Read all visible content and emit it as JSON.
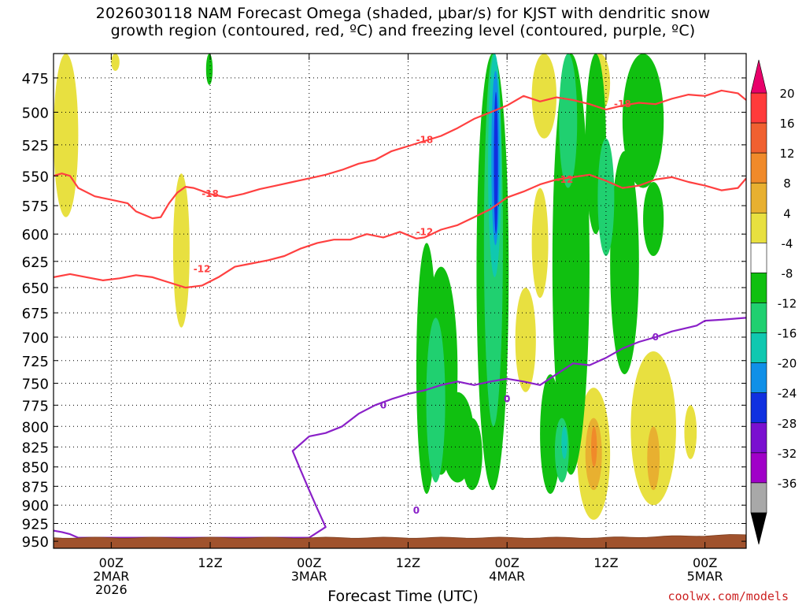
{
  "title": {
    "line1": "2026030118 NAM Forecast Omega (shaded, μbar/s) for KJST with dendritic snow",
    "line2": "growth region (contoured, red, ºC) and freezing level (contoured, purple, ºC)"
  },
  "xlabel": "Forecast Time (UTC)",
  "credit": "coolwx.com/models",
  "chart_data": {
    "type": "heatmap",
    "title": "2026030118 NAM Forecast Omega (shaded, μbar/s) for KJST with dendritic snow growth region (contoured, red, ºC) and freezing level (contoured, purple, ºC)",
    "xlabel": "Forecast Time (UTC)",
    "ylabel": "",
    "xlim_hours": [
      -7,
      77
    ],
    "ylim": [
      960,
      458
    ],
    "grid": true,
    "y_ticks": [
      "475",
      "500",
      "525",
      "550",
      "575",
      "600",
      "625",
      "650",
      "675",
      "700",
      "725",
      "750",
      "775",
      "800",
      "825",
      "850",
      "875",
      "900",
      "925",
      "950"
    ],
    "x_ticks": [
      {
        "h": 0,
        "lines": [
          "00Z",
          "2MAR",
          "2026"
        ]
      },
      {
        "h": 12,
        "lines": [
          "12Z"
        ]
      },
      {
        "h": 24,
        "lines": [
          "00Z",
          "3MAR"
        ]
      },
      {
        "h": 36,
        "lines": [
          "12Z"
        ]
      },
      {
        "h": 48,
        "lines": [
          "00Z",
          "4MAR"
        ]
      },
      {
        "h": 60,
        "lines": [
          "12Z"
        ]
      },
      {
        "h": 72,
        "lines": [
          "00Z",
          "5MAR"
        ]
      }
    ],
    "colorbar": {
      "labels": [
        "20",
        "16",
        "12",
        "8",
        "4",
        "-4",
        "-8",
        "-12",
        "-16",
        "-20",
        "-24",
        "-28",
        "-32",
        "-36"
      ],
      "colors": [
        "#e8f05a",
        "#f06070",
        "#e8f05a",
        "#f08a2a",
        "#e8b030",
        "#e8e040",
        "#ffffff",
        "#10c010",
        "#20d070",
        "#10c8b0",
        "#1090e8",
        "#1030e0",
        "#7a10d0",
        "#a000c8",
        "#a8a8a8",
        "#000000"
      ],
      "top_triangle": "#e8006a",
      "bottom_triangle": "#000000"
    },
    "shading_colors": {
      "pos4": "#e8e040",
      "pos8": "#e8b030",
      "pos12": "#f08a2a",
      "pos16": "#f06030",
      "neg4": "#10c010",
      "neg8": "#20d070",
      "neg12": "#10c8b0",
      "neg16": "#1090e8",
      "neg20": "#1030e0"
    },
    "series": [
      {
        "name": "-18",
        "color": "#ff4040",
        "points": [
          [
            -7,
            550
          ],
          [
            -6,
            548
          ],
          [
            -5,
            550
          ],
          [
            -4,
            560
          ],
          [
            -2,
            567
          ],
          [
            0,
            570
          ],
          [
            2,
            573
          ],
          [
            3,
            580
          ],
          [
            5,
            586
          ],
          [
            6,
            585
          ],
          [
            7,
            573
          ],
          [
            8,
            564
          ],
          [
            9,
            559
          ],
          [
            10,
            560
          ],
          [
            12,
            565
          ],
          [
            14,
            568
          ],
          [
            16,
            565
          ],
          [
            18,
            561
          ],
          [
            20,
            558
          ],
          [
            22,
            555
          ],
          [
            24,
            552
          ],
          [
            26,
            549
          ],
          [
            28,
            545
          ],
          [
            30,
            540
          ],
          [
            32,
            537
          ],
          [
            34,
            530
          ],
          [
            36,
            526
          ],
          [
            38,
            522
          ],
          [
            40,
            518
          ],
          [
            42,
            512
          ],
          [
            44,
            505
          ],
          [
            46,
            500
          ],
          [
            48,
            495
          ],
          [
            50,
            488
          ],
          [
            52,
            492
          ],
          [
            54,
            489
          ],
          [
            56,
            491
          ],
          [
            58,
            494
          ],
          [
            60,
            498
          ],
          [
            62,
            495
          ],
          [
            64,
            493
          ],
          [
            66,
            494
          ],
          [
            68,
            490
          ],
          [
            70,
            487
          ],
          [
            72,
            488
          ],
          [
            74,
            484
          ],
          [
            76,
            486
          ],
          [
            77,
            491
          ]
        ],
        "labels": [
          {
            "text": "-18",
            "at": [
              12,
              565
            ]
          },
          {
            "text": "-18",
            "at": [
              38,
              521
            ]
          },
          {
            "text": "-18",
            "at": [
              62,
              494
            ]
          }
        ]
      },
      {
        "name": "-12",
        "color": "#ff4040",
        "points": [
          [
            -7,
            640
          ],
          [
            -5,
            637
          ],
          [
            -3,
            640
          ],
          [
            -1,
            643
          ],
          [
            1,
            641
          ],
          [
            3,
            638
          ],
          [
            5,
            640
          ],
          [
            7,
            645
          ],
          [
            9,
            650
          ],
          [
            11,
            648
          ],
          [
            13,
            640
          ],
          [
            15,
            630
          ],
          [
            17,
            627
          ],
          [
            19,
            624
          ],
          [
            21,
            620
          ],
          [
            23,
            613
          ],
          [
            25,
            608
          ],
          [
            27,
            605
          ],
          [
            29,
            605
          ],
          [
            31,
            600
          ],
          [
            33,
            603
          ],
          [
            35,
            598
          ],
          [
            37,
            604
          ],
          [
            38,
            603
          ],
          [
            40,
            596
          ],
          [
            42,
            592
          ],
          [
            44,
            585
          ],
          [
            46,
            578
          ],
          [
            48,
            568
          ],
          [
            50,
            563
          ],
          [
            52,
            557
          ],
          [
            54,
            553
          ],
          [
            56,
            551
          ],
          [
            58,
            549
          ],
          [
            60,
            554
          ],
          [
            62,
            560
          ],
          [
            64,
            558
          ],
          [
            66,
            553
          ],
          [
            68,
            551
          ],
          [
            70,
            555
          ],
          [
            72,
            558
          ],
          [
            74,
            562
          ],
          [
            76,
            560
          ],
          [
            77,
            552
          ]
        ],
        "labels": [
          {
            "text": "-12",
            "at": [
              11,
              632
            ]
          },
          {
            "text": "-12",
            "at": [
              38,
              598
            ]
          },
          {
            "text": "-12",
            "at": [
              55,
              553
            ]
          }
        ]
      },
      {
        "name": "0",
        "color": "#8a20c8",
        "points": [
          [
            -7,
            935
          ],
          [
            -6,
            937
          ],
          [
            -5,
            940
          ],
          [
            -4,
            945
          ],
          [
            24,
            945
          ],
          [
            26,
            930
          ],
          [
            25,
            905
          ],
          [
            24,
            880
          ],
          [
            23,
            855
          ],
          [
            22,
            830
          ],
          [
            24,
            812
          ],
          [
            26,
            808
          ],
          [
            28,
            800
          ],
          [
            30,
            785
          ],
          [
            32,
            775
          ],
          [
            34,
            768
          ],
          [
            36,
            762
          ],
          [
            38,
            758
          ],
          [
            40,
            752
          ],
          [
            42,
            748
          ],
          [
            44,
            752
          ],
          [
            46,
            748
          ],
          [
            48,
            745
          ],
          [
            50,
            748
          ],
          [
            52,
            752
          ],
          [
            54,
            740
          ],
          [
            56,
            728
          ],
          [
            58,
            730
          ],
          [
            60,
            722
          ],
          [
            62,
            712
          ],
          [
            64,
            705
          ],
          [
            66,
            700
          ],
          [
            68,
            694
          ],
          [
            70,
            690
          ],
          [
            71,
            688
          ],
          [
            72,
            683
          ],
          [
            74,
            682
          ],
          [
            77,
            680
          ]
        ],
        "labels": [
          {
            "text": "0",
            "at": [
              33,
              775
            ]
          },
          {
            "text": "0",
            "at": [
              48,
              768
            ]
          },
          {
            "text": "0",
            "at": [
              66,
              700
            ]
          },
          {
            "text": "0",
            "at": [
              37,
              907
            ]
          }
        ]
      }
    ]
  }
}
